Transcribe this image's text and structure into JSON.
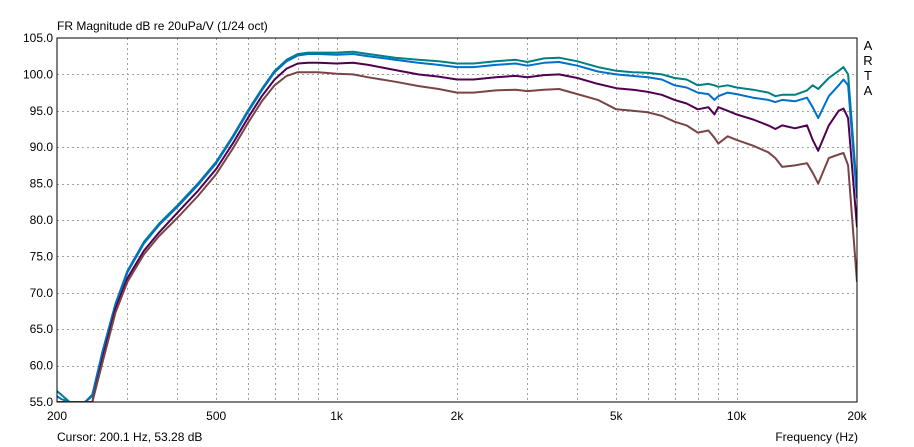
{
  "chart_data": {
    "type": "line",
    "title": "FR Magnitude dB re 20uPa/V (1/24 oct)",
    "xlabel": "Frequency (Hz)",
    "ylabel": "",
    "xscale": "log",
    "xlim": [
      200,
      20000
    ],
    "ylim": [
      55,
      105
    ],
    "grid": true,
    "xticks": [
      200,
      500,
      1000,
      2000,
      5000,
      10000,
      20000
    ],
    "xtick_labels": [
      "200",
      "500",
      "1k",
      "2k",
      "5k",
      "10k",
      "20k"
    ],
    "xgrid": [
      300,
      400,
      500,
      600,
      700,
      800,
      900,
      1000,
      2000,
      3000,
      4000,
      5000,
      6000,
      7000,
      8000,
      9000,
      10000
    ],
    "yticks": [
      55,
      60,
      65,
      70,
      75,
      80,
      85,
      90,
      95,
      100,
      105
    ],
    "ytick_labels": [
      "55.0",
      "60.0",
      "65.0",
      "70.0",
      "75.0",
      "80.0",
      "85.0",
      "90.0",
      "95.0",
      "100.0",
      "105.0"
    ],
    "side_label": [
      "A",
      "R",
      "T",
      "A"
    ],
    "cursor_text": "Cursor: 200.1 Hz, 53.28 dB",
    "series": [
      {
        "color": "#008080",
        "x": [
          200,
          205,
          215,
          225,
          235,
          245,
          260,
          280,
          300,
          330,
          360,
          400,
          450,
          500,
          550,
          600,
          650,
          700,
          750,
          800,
          850,
          900,
          1000,
          1100,
          1200,
          1400,
          1600,
          1800,
          2000,
          2200,
          2500,
          2800,
          3000,
          3300,
          3600,
          4000,
          4500,
          5000,
          5500,
          6000,
          6500,
          7000,
          7500,
          8000,
          8500,
          8800,
          9000,
          9500,
          10000,
          11000,
          12000,
          12500,
          13000,
          14000,
          15000,
          15500,
          16000,
          17000,
          18000,
          18500,
          19000,
          20000
        ],
        "y": [
          56.5,
          56,
          55,
          55,
          55,
          56,
          62,
          68.5,
          73,
          77,
          79.5,
          82,
          85,
          88,
          91.5,
          95,
          98,
          100.5,
          102,
          102.8,
          103,
          103,
          103,
          103.1,
          102.8,
          102.3,
          102,
          101.8,
          101.5,
          101.5,
          101.8,
          102,
          101.7,
          102.2,
          102.3,
          101.8,
          101,
          100.5,
          100.3,
          100.2,
          100,
          99.5,
          99.3,
          98.5,
          98.7,
          98.5,
          98.3,
          98.5,
          98.2,
          97.9,
          97.5,
          97,
          97.2,
          97.2,
          97.8,
          98.5,
          98,
          99.5,
          100.5,
          101,
          100,
          84
        ]
      },
      {
        "color": "#0070c8",
        "x": [
          200,
          205,
          215,
          225,
          235,
          245,
          260,
          280,
          300,
          330,
          360,
          400,
          450,
          500,
          550,
          600,
          650,
          700,
          750,
          800,
          850,
          900,
          1000,
          1100,
          1200,
          1400,
          1600,
          1800,
          2000,
          2200,
          2500,
          2800,
          3000,
          3300,
          3600,
          4000,
          4500,
          5000,
          5500,
          6000,
          6500,
          7000,
          7500,
          8000,
          8500,
          8800,
          9000,
          9500,
          10000,
          11000,
          12000,
          12500,
          13000,
          14000,
          15000,
          15500,
          16000,
          17000,
          18000,
          18500,
          19000,
          20000
        ],
        "y": [
          55.8,
          55.4,
          55,
          55,
          55,
          55.8,
          61.8,
          68.3,
          72.8,
          76.8,
          79.3,
          81.8,
          84.8,
          87.8,
          91.3,
          94.8,
          97.8,
          100.3,
          101.8,
          102.6,
          102.8,
          102.8,
          102.7,
          102.8,
          102.5,
          102,
          101.6,
          101.3,
          101,
          101,
          101.3,
          101.5,
          101.2,
          101.6,
          101.7,
          101.2,
          100.4,
          100,
          99.8,
          99.6,
          99.3,
          98.5,
          98.2,
          97.5,
          97.3,
          96.5,
          97,
          97.5,
          97.3,
          96.8,
          96.5,
          96.2,
          96.5,
          96.3,
          96.8,
          95.5,
          94,
          97,
          98.5,
          99.3,
          98.5,
          83
        ]
      },
      {
        "color": "#500050",
        "x": [
          200,
          205,
          215,
          225,
          235,
          245,
          260,
          280,
          300,
          330,
          360,
          400,
          450,
          500,
          550,
          600,
          650,
          700,
          750,
          800,
          850,
          900,
          1000,
          1100,
          1200,
          1400,
          1600,
          1800,
          2000,
          2200,
          2500,
          2800,
          3000,
          3300,
          3600,
          4000,
          4500,
          5000,
          5500,
          6000,
          6500,
          7000,
          7500,
          8000,
          8500,
          8800,
          9000,
          9500,
          10000,
          11000,
          12000,
          12500,
          13000,
          14000,
          15000,
          15500,
          16000,
          17000,
          18000,
          18500,
          19000,
          20000
        ],
        "y": [
          55,
          55,
          55,
          55,
          55,
          55,
          61,
          67.8,
          72,
          75.8,
          78.3,
          81,
          84,
          87,
          90.5,
          94,
          97,
          99.3,
          100.8,
          101.5,
          101.6,
          101.6,
          101.5,
          101.6,
          101.3,
          100.6,
          100,
          99.7,
          99.3,
          99.3,
          99.6,
          99.8,
          99.6,
          99.9,
          100,
          99.5,
          98.7,
          98.1,
          97.9,
          97.6,
          97.2,
          96.5,
          96,
          95.2,
          95.5,
          94.5,
          95.5,
          95,
          94.5,
          93.8,
          93,
          92.5,
          93,
          92.6,
          93,
          91,
          89.5,
          93,
          95,
          95.3,
          94,
          79
        ]
      },
      {
        "color": "#7a4444",
        "x": [
          200,
          205,
          215,
          225,
          235,
          245,
          260,
          280,
          300,
          330,
          360,
          400,
          450,
          500,
          550,
          600,
          650,
          700,
          750,
          800,
          850,
          900,
          1000,
          1100,
          1200,
          1400,
          1600,
          1800,
          2000,
          2200,
          2500,
          2800,
          3000,
          3300,
          3600,
          4000,
          4500,
          5000,
          5500,
          6000,
          6500,
          7000,
          7500,
          8000,
          8500,
          8800,
          9000,
          9500,
          10000,
          11000,
          12000,
          12500,
          13000,
          14000,
          15000,
          15500,
          16000,
          17000,
          18000,
          18500,
          19000,
          20000
        ],
        "y": [
          55,
          55,
          55,
          55,
          55,
          55,
          60.5,
          67.3,
          71.5,
          75.3,
          77.8,
          80.3,
          83.3,
          86.3,
          89.8,
          93.3,
          96.3,
          98.5,
          99.8,
          100.3,
          100.3,
          100.3,
          100.1,
          100,
          99.6,
          99,
          98.4,
          98,
          97.5,
          97.5,
          97.8,
          97.9,
          97.7,
          97.9,
          98,
          97.3,
          96.5,
          95.2,
          95,
          94.8,
          94.3,
          93.5,
          93,
          92,
          92.3,
          91.3,
          90.5,
          91.5,
          91,
          90.2,
          89.3,
          88.5,
          87.3,
          87.5,
          87.8,
          86.5,
          85,
          88.5,
          89,
          89.2,
          87.5,
          71.5
        ]
      }
    ]
  }
}
